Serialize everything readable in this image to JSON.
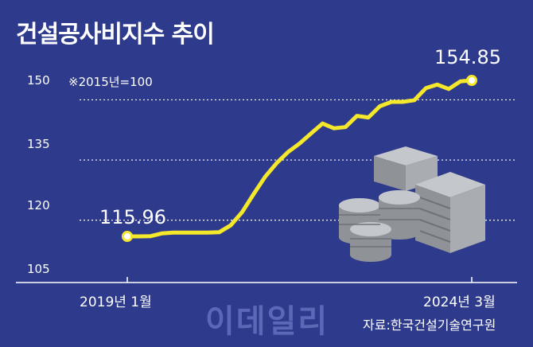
{
  "chart_data": {
    "type": "line",
    "title": "건설공사비지수 추이",
    "note": "※2015년=100",
    "yticks": [
      "150",
      "135",
      "120",
      "105"
    ],
    "ylim": [
      105,
      157
    ],
    "x_labels": {
      "start": "2019년 1월",
      "end": "2024년 3월"
    },
    "series": [
      {
        "color": "#f5e82a",
        "values": [
          115.96,
          115.96,
          116.0,
          116.7,
          116.9,
          116.9,
          116.9,
          116.9,
          117.0,
          118.7,
          122.0,
          126.5,
          130.8,
          134.2,
          137.0,
          139.1,
          141.6,
          144.1,
          142.9,
          143.2,
          146.0,
          145.6,
          148.4,
          149.5,
          149.5,
          149.9,
          152.9,
          153.8,
          152.7,
          154.6,
          154.85
        ]
      }
    ],
    "labels": {
      "first": "115.96",
      "last": "154.85"
    },
    "grid": true
  },
  "watermark": "이데일리",
  "source": "자료:한국건설기술연구원",
  "colors": {
    "background": "#2e3a8c",
    "line": "#f5e82a",
    "grid": "#ffffff",
    "illustration": "#9ea1a6"
  }
}
